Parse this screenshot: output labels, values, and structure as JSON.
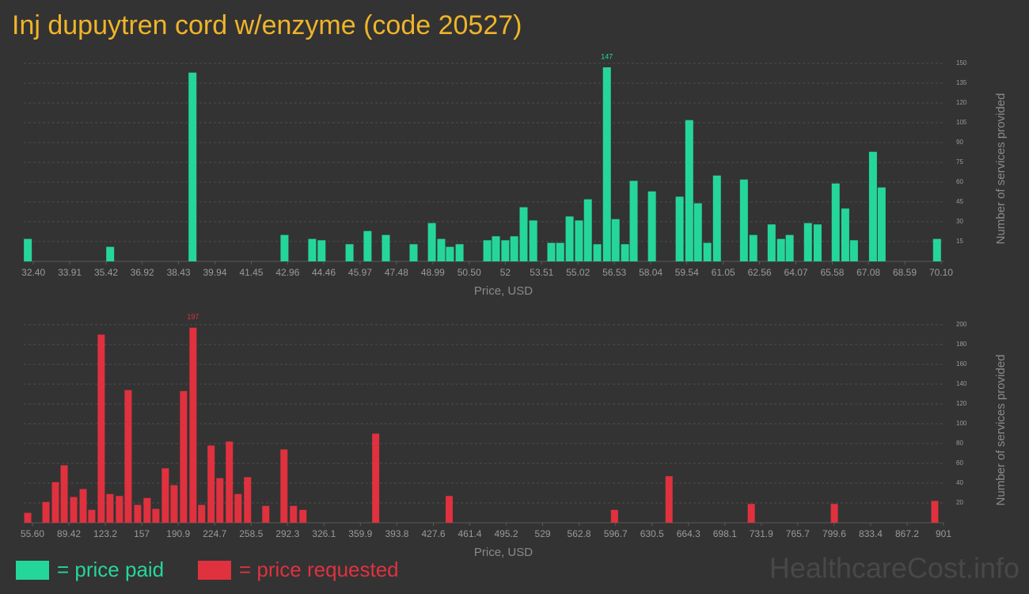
{
  "title": "Inj dupuytren cord w/enzyme (code 20527)",
  "watermark": "HealthcareCost.info",
  "chart_data": [
    {
      "type": "bar",
      "xlabel": "Price, USD",
      "ylabel": "Number of services provided",
      "x": [
        32.17,
        35.59,
        39.01,
        42.83,
        43.98,
        44.37,
        45.53,
        46.28,
        47.04,
        48.19,
        48.95,
        49.34,
        49.7,
        50.1,
        51.25,
        51.61,
        52.0,
        52.37,
        52.76,
        53.16,
        53.91,
        54.28,
        54.67,
        55.06,
        55.43,
        55.82,
        56.22,
        56.58,
        56.97,
        57.33,
        58.09,
        59.24,
        59.64,
        60.0,
        60.39,
        60.79,
        61.91,
        62.3,
        63.06,
        63.45,
        63.81,
        64.57,
        64.97,
        65.72,
        66.12,
        66.48,
        67.27,
        67.63,
        69.93
      ],
      "series": [
        {
          "name": "= price paid",
          "color": "#25d69b",
          "values": [
            17,
            11,
            143,
            20,
            17,
            16,
            13,
            23,
            20,
            13,
            29,
            17,
            11,
            13,
            16,
            19,
            16,
            19,
            41,
            31,
            14,
            14,
            34,
            31,
            47,
            13,
            147,
            32,
            13,
            61,
            53,
            49,
            107,
            44,
            14,
            65,
            62,
            20,
            28,
            17,
            20,
            29,
            28,
            59,
            40,
            16,
            83,
            56,
            17
          ]
        }
      ],
      "xlim": [
        32,
        70.2
      ],
      "xticks": [
        {
          "value": 32.4,
          "label": "32.40"
        },
        33.91,
        35.42,
        36.92,
        38.43,
        39.94,
        41.45,
        42.96,
        44.46,
        45.97,
        47.48,
        48.99,
        {
          "value": 50.5,
          "label": "50.50"
        },
        52,
        53.51,
        55.02,
        56.53,
        58.04,
        59.54,
        61.05,
        62.56,
        64.07,
        65.58,
        67.08,
        68.59,
        {
          "value": 70.1,
          "label": "70.10"
        }
      ],
      "ylim": [
        0,
        150
      ],
      "yticks": [
        15,
        30,
        45,
        60,
        75,
        90,
        105,
        120,
        135,
        150
      ],
      "grid": true
    },
    {
      "type": "bar",
      "xlabel": "Price, USD",
      "ylabel": "Number of services provided",
      "x": [
        51.2,
        68.1,
        76.9,
        85.0,
        93.8,
        102.6,
        110.6,
        119.4,
        127.5,
        136.3,
        144.4,
        153.2,
        162.0,
        170.1,
        178.9,
        187.0,
        195.8,
        204.6,
        212.6,
        221.4,
        229.5,
        238.3,
        246.4,
        255.2,
        272.1,
        289.0,
        297.8,
        306.6,
        374.1,
        442.3,
        595.7,
        646.3,
        722.6,
        799.7,
        892.9
      ],
      "series": [
        {
          "name": "= price requested",
          "color": "#e0313f",
          "values": [
            10,
            21,
            41,
            58,
            26,
            34,
            13,
            190,
            29,
            27,
            134,
            18,
            25,
            14,
            55,
            38,
            133,
            197,
            18,
            78,
            45,
            82,
            29,
            46,
            17,
            74,
            17,
            13,
            90,
            27,
            13,
            47,
            19,
            19,
            22
          ]
        }
      ],
      "xlim": [
        47.5,
        901
      ],
      "xticks": [
        {
          "value": 55.6,
          "label": "55.60"
        },
        89.42,
        123.2,
        157,
        190.9,
        224.7,
        258.5,
        292.3,
        326.1,
        359.9,
        393.8,
        427.6,
        461.4,
        495.2,
        529,
        562.8,
        596.7,
        630.5,
        664.3,
        698.1,
        731.9,
        765.7,
        799.6,
        833.4,
        867.2,
        901
      ],
      "ylim": [
        0,
        200
      ],
      "yticks": [
        20,
        40,
        60,
        80,
        100,
        120,
        140,
        160,
        180,
        200
      ],
      "grid": true
    }
  ]
}
